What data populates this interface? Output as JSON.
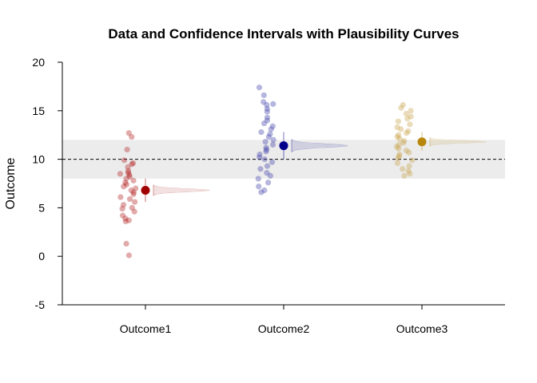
{
  "chart_data": {
    "type": "scatter",
    "title": "Data and Confidence Intervals with Plausibility Curves",
    "xlabel": "",
    "ylabel": "Outcome",
    "ylim": [
      -5,
      20
    ],
    "yticks": [
      -5,
      0,
      5,
      10,
      15,
      20
    ],
    "reference_line": 10,
    "reference_band": [
      8,
      12
    ],
    "categories": [
      "Outcome1",
      "Outcome2",
      "Outcome3"
    ],
    "series": [
      {
        "name": "Outcome1",
        "color": "#a00000",
        "point_color": "#b22222",
        "mean": 6.8,
        "ci": [
          5.6,
          8.0
        ],
        "points": [
          12.3,
          12.7,
          11.0,
          9.9,
          9.6,
          9.5,
          9.2,
          8.8,
          8.6,
          8.5,
          8.4,
          8.2,
          8.0,
          7.8,
          7.6,
          7.4,
          7.2,
          7.0,
          6.8,
          6.6,
          6.4,
          6.1,
          5.9,
          5.6,
          5.3,
          5.0,
          4.9,
          4.6,
          4.2,
          3.9,
          3.7,
          3.6,
          1.3,
          0.1
        ]
      },
      {
        "name": "Outcome2",
        "color": "#00008b",
        "point_color": "#3f3fa8",
        "mean": 11.4,
        "ci": [
          10.0,
          12.8
        ],
        "points": [
          17.4,
          16.6,
          15.9,
          15.7,
          15.6,
          15.2,
          14.9,
          14.3,
          14.0,
          13.7,
          13.4,
          13.1,
          12.8,
          12.6,
          12.3,
          12.0,
          11.8,
          11.5,
          11.2,
          11.0,
          10.8,
          10.5,
          10.2,
          10.0,
          9.7,
          9.3,
          9.0,
          8.6,
          8.3,
          8.0,
          7.6,
          7.2,
          6.8,
          6.6
        ]
      },
      {
        "name": "Outcome3",
        "color": "#b8860b",
        "point_color": "#c9a44a",
        "mean": 11.8,
        "ci": [
          10.9,
          12.8
        ],
        "points": [
          15.6,
          15.3,
          15.0,
          14.7,
          14.4,
          14.2,
          13.9,
          13.6,
          13.3,
          13.1,
          12.9,
          12.7,
          12.5,
          12.3,
          12.1,
          11.9,
          11.7,
          11.5,
          11.3,
          11.1,
          10.9,
          10.7,
          10.5,
          10.3,
          10.1,
          9.9,
          9.6,
          9.3,
          9.0,
          8.8,
          8.5,
          8.3
        ]
      }
    ]
  }
}
